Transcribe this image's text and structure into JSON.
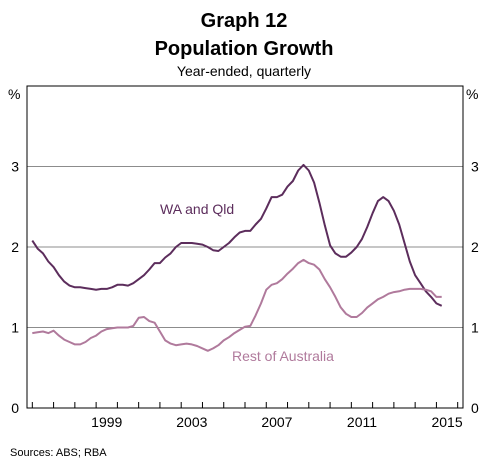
{
  "chart_data": {
    "type": "line",
    "title": "Graph 12",
    "subtitle": "Population Growth",
    "subsubtitle": "Year-ended, quarterly",
    "unit_left": "%",
    "unit_right": "%",
    "source": "Sources:   ABS; RBA",
    "xlim": [
      1995.75,
      2016.25
    ],
    "x_ticks": [
      1999,
      2003,
      2007,
      2011,
      2015
    ],
    "x_tick_labels": [
      "1999",
      "2003",
      "2007",
      "2011",
      "2015"
    ],
    "ylim": [
      0,
      4
    ],
    "y_ticks": [
      0,
      1,
      2,
      3
    ],
    "y_tick_labels": [
      "0",
      "1",
      "2",
      "3"
    ],
    "grid": true,
    "annotations": [
      {
        "text": "WA and Qld",
        "series": 0,
        "color": "#5c2d5c"
      },
      {
        "text": "Rest of Australia",
        "series": 1,
        "color": "#b07a9c"
      }
    ],
    "series": [
      {
        "name": "WA and Qld",
        "color": "#5c2d5c",
        "x": [
          1996.0,
          1996.25,
          1996.5,
          1996.75,
          1997.0,
          1997.25,
          1997.5,
          1997.75,
          1998.0,
          1998.25,
          1998.5,
          1998.75,
          1999.0,
          1999.25,
          1999.5,
          1999.75,
          2000.0,
          2000.25,
          2000.5,
          2000.75,
          2001.0,
          2001.25,
          2001.5,
          2001.75,
          2002.0,
          2002.25,
          2002.5,
          2002.75,
          2003.0,
          2003.25,
          2003.5,
          2003.75,
          2004.0,
          2004.25,
          2004.5,
          2004.75,
          2005.0,
          2005.25,
          2005.5,
          2005.75,
          2006.0,
          2006.25,
          2006.5,
          2006.75,
          2007.0,
          2007.25,
          2007.5,
          2007.75,
          2008.0,
          2008.25,
          2008.5,
          2008.75,
          2009.0,
          2009.25,
          2009.5,
          2009.75,
          2010.0,
          2010.25,
          2010.5,
          2010.75,
          2011.0,
          2011.25,
          2011.5,
          2011.75,
          2012.0,
          2012.25,
          2012.5,
          2012.75,
          2013.0,
          2013.25,
          2013.5,
          2013.75,
          2014.0,
          2014.25,
          2014.5,
          2014.75,
          2015.0,
          2015.25
        ],
        "values": [
          2.08,
          1.98,
          1.92,
          1.82,
          1.75,
          1.65,
          1.57,
          1.52,
          1.5,
          1.5,
          1.49,
          1.48,
          1.47,
          1.48,
          1.48,
          1.5,
          1.53,
          1.53,
          1.52,
          1.55,
          1.6,
          1.65,
          1.72,
          1.8,
          1.8,
          1.87,
          1.92,
          2.0,
          2.05,
          2.05,
          2.05,
          2.04,
          2.03,
          2.0,
          1.96,
          1.95,
          2.0,
          2.05,
          2.12,
          2.18,
          2.2,
          2.2,
          2.28,
          2.35,
          2.48,
          2.62,
          2.62,
          2.65,
          2.75,
          2.82,
          2.95,
          3.02,
          2.95,
          2.8,
          2.55,
          2.27,
          2.02,
          1.92,
          1.88,
          1.88,
          1.93,
          2.0,
          2.1,
          2.25,
          2.42,
          2.57,
          2.62,
          2.57,
          2.45,
          2.28,
          2.05,
          1.82,
          1.65,
          1.55,
          1.45,
          1.38,
          1.3,
          1.27
        ]
      },
      {
        "name": "Rest of Australia",
        "color": "#b07a9c",
        "x": [
          1996.0,
          1996.25,
          1996.5,
          1996.75,
          1997.0,
          1997.25,
          1997.5,
          1997.75,
          1998.0,
          1998.25,
          1998.5,
          1998.75,
          1999.0,
          1999.25,
          1999.5,
          1999.75,
          2000.0,
          2000.25,
          2000.5,
          2000.75,
          2001.0,
          2001.25,
          2001.5,
          2001.75,
          2002.0,
          2002.25,
          2002.5,
          2002.75,
          2003.0,
          2003.25,
          2003.5,
          2003.75,
          2004.0,
          2004.25,
          2004.5,
          2004.75,
          2005.0,
          2005.25,
          2005.5,
          2005.75,
          2006.0,
          2006.25,
          2006.5,
          2006.75,
          2007.0,
          2007.25,
          2007.5,
          2007.75,
          2008.0,
          2008.25,
          2008.5,
          2008.75,
          2009.0,
          2009.25,
          2009.5,
          2009.75,
          2010.0,
          2010.25,
          2010.5,
          2010.75,
          2011.0,
          2011.25,
          2011.5,
          2011.75,
          2012.0,
          2012.25,
          2012.5,
          2012.75,
          2013.0,
          2013.25,
          2013.5,
          2013.75,
          2014.0,
          2014.25,
          2014.5,
          2014.75,
          2015.0,
          2015.25
        ],
        "values": [
          0.93,
          0.94,
          0.95,
          0.93,
          0.96,
          0.9,
          0.85,
          0.82,
          0.79,
          0.79,
          0.82,
          0.87,
          0.9,
          0.95,
          0.98,
          0.99,
          1.0,
          1.0,
          1.0,
          1.02,
          1.12,
          1.13,
          1.08,
          1.06,
          0.95,
          0.84,
          0.8,
          0.78,
          0.79,
          0.8,
          0.79,
          0.77,
          0.74,
          0.71,
          0.74,
          0.78,
          0.84,
          0.88,
          0.93,
          0.97,
          1.01,
          1.02,
          1.15,
          1.3,
          1.47,
          1.53,
          1.55,
          1.6,
          1.67,
          1.73,
          1.8,
          1.84,
          1.8,
          1.78,
          1.72,
          1.6,
          1.5,
          1.38,
          1.25,
          1.17,
          1.13,
          1.13,
          1.18,
          1.25,
          1.3,
          1.35,
          1.38,
          1.42,
          1.44,
          1.45,
          1.47,
          1.48,
          1.48,
          1.48,
          1.47,
          1.45,
          1.38,
          1.38
        ]
      }
    ]
  }
}
